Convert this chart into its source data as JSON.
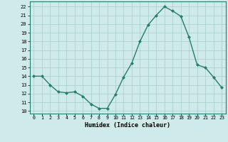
{
  "x": [
    0,
    1,
    2,
    3,
    4,
    5,
    6,
    7,
    8,
    9,
    10,
    11,
    12,
    13,
    14,
    15,
    16,
    17,
    18,
    19,
    20,
    21,
    22,
    23
  ],
  "y": [
    14.0,
    14.0,
    13.0,
    12.2,
    12.1,
    12.2,
    11.7,
    10.8,
    10.3,
    10.3,
    11.9,
    13.9,
    15.5,
    18.0,
    19.9,
    21.0,
    22.0,
    21.5,
    20.9,
    18.5,
    15.3,
    15.0,
    13.9,
    12.7
  ],
  "line_color": "#267e6e",
  "marker": "D",
  "marker_size": 2.0,
  "linewidth": 1.0,
  "bg_color": "#ceeaea",
  "grid_color": "#a8cccc",
  "xlabel": "Humidex (Indice chaleur)",
  "ylabel_ticks": [
    10,
    11,
    12,
    13,
    14,
    15,
    16,
    17,
    18,
    19,
    20,
    21,
    22
  ],
  "xlim": [
    -0.5,
    23.5
  ],
  "ylim": [
    9.7,
    22.6
  ]
}
